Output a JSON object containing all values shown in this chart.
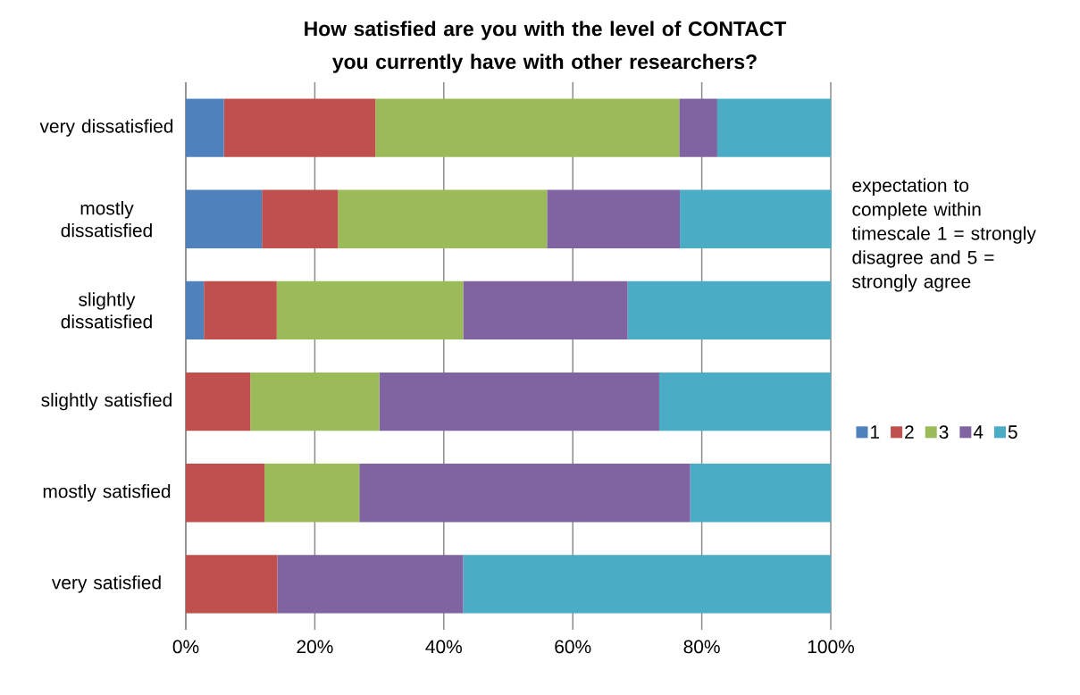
{
  "chart_data": {
    "type": "bar",
    "orientation": "horizontal",
    "stacked": true,
    "title": "How satisfied are you with the level of CONTACT you currently have with other researchers?",
    "categories": [
      "very dissatisfied",
      "mostly dissatisfied",
      "slightly dissatisfied",
      "slightly satisfied",
      "mostly satisfied",
      "very satisfied"
    ],
    "series": [
      {
        "name": "1",
        "color": "#4f81bd",
        "values": [
          5.9,
          11.8,
          2.8,
          0,
          0,
          0
        ]
      },
      {
        "name": "2",
        "color": "#c0504d",
        "values": [
          23.5,
          11.8,
          11.3,
          10.0,
          12.2,
          14.2
        ]
      },
      {
        "name": "3",
        "color": "#9bbb59",
        "values": [
          47.1,
          32.4,
          28.9,
          20.0,
          14.7,
          0
        ]
      },
      {
        "name": "4",
        "color": "#8064a2",
        "values": [
          5.9,
          20.6,
          25.5,
          43.4,
          51.3,
          28.8
        ]
      },
      {
        "name": "5",
        "color": "#4bacc6",
        "values": [
          17.6,
          23.5,
          31.5,
          26.6,
          21.8,
          57.0
        ]
      }
    ],
    "xlim": [
      0,
      100
    ],
    "xticks": [
      {
        "value": 0,
        "label": "0%"
      },
      {
        "value": 20,
        "label": "20%"
      },
      {
        "value": 40,
        "label": "40%"
      },
      {
        "value": 60,
        "label": "60%"
      },
      {
        "value": 80,
        "label": "80%"
      },
      {
        "value": 100,
        "label": "100%"
      }
    ],
    "grid": "x",
    "legend": "right",
    "legend_title": "expectation to complete within timescale 1 = strongly disagree and 5 = strongly agree"
  }
}
